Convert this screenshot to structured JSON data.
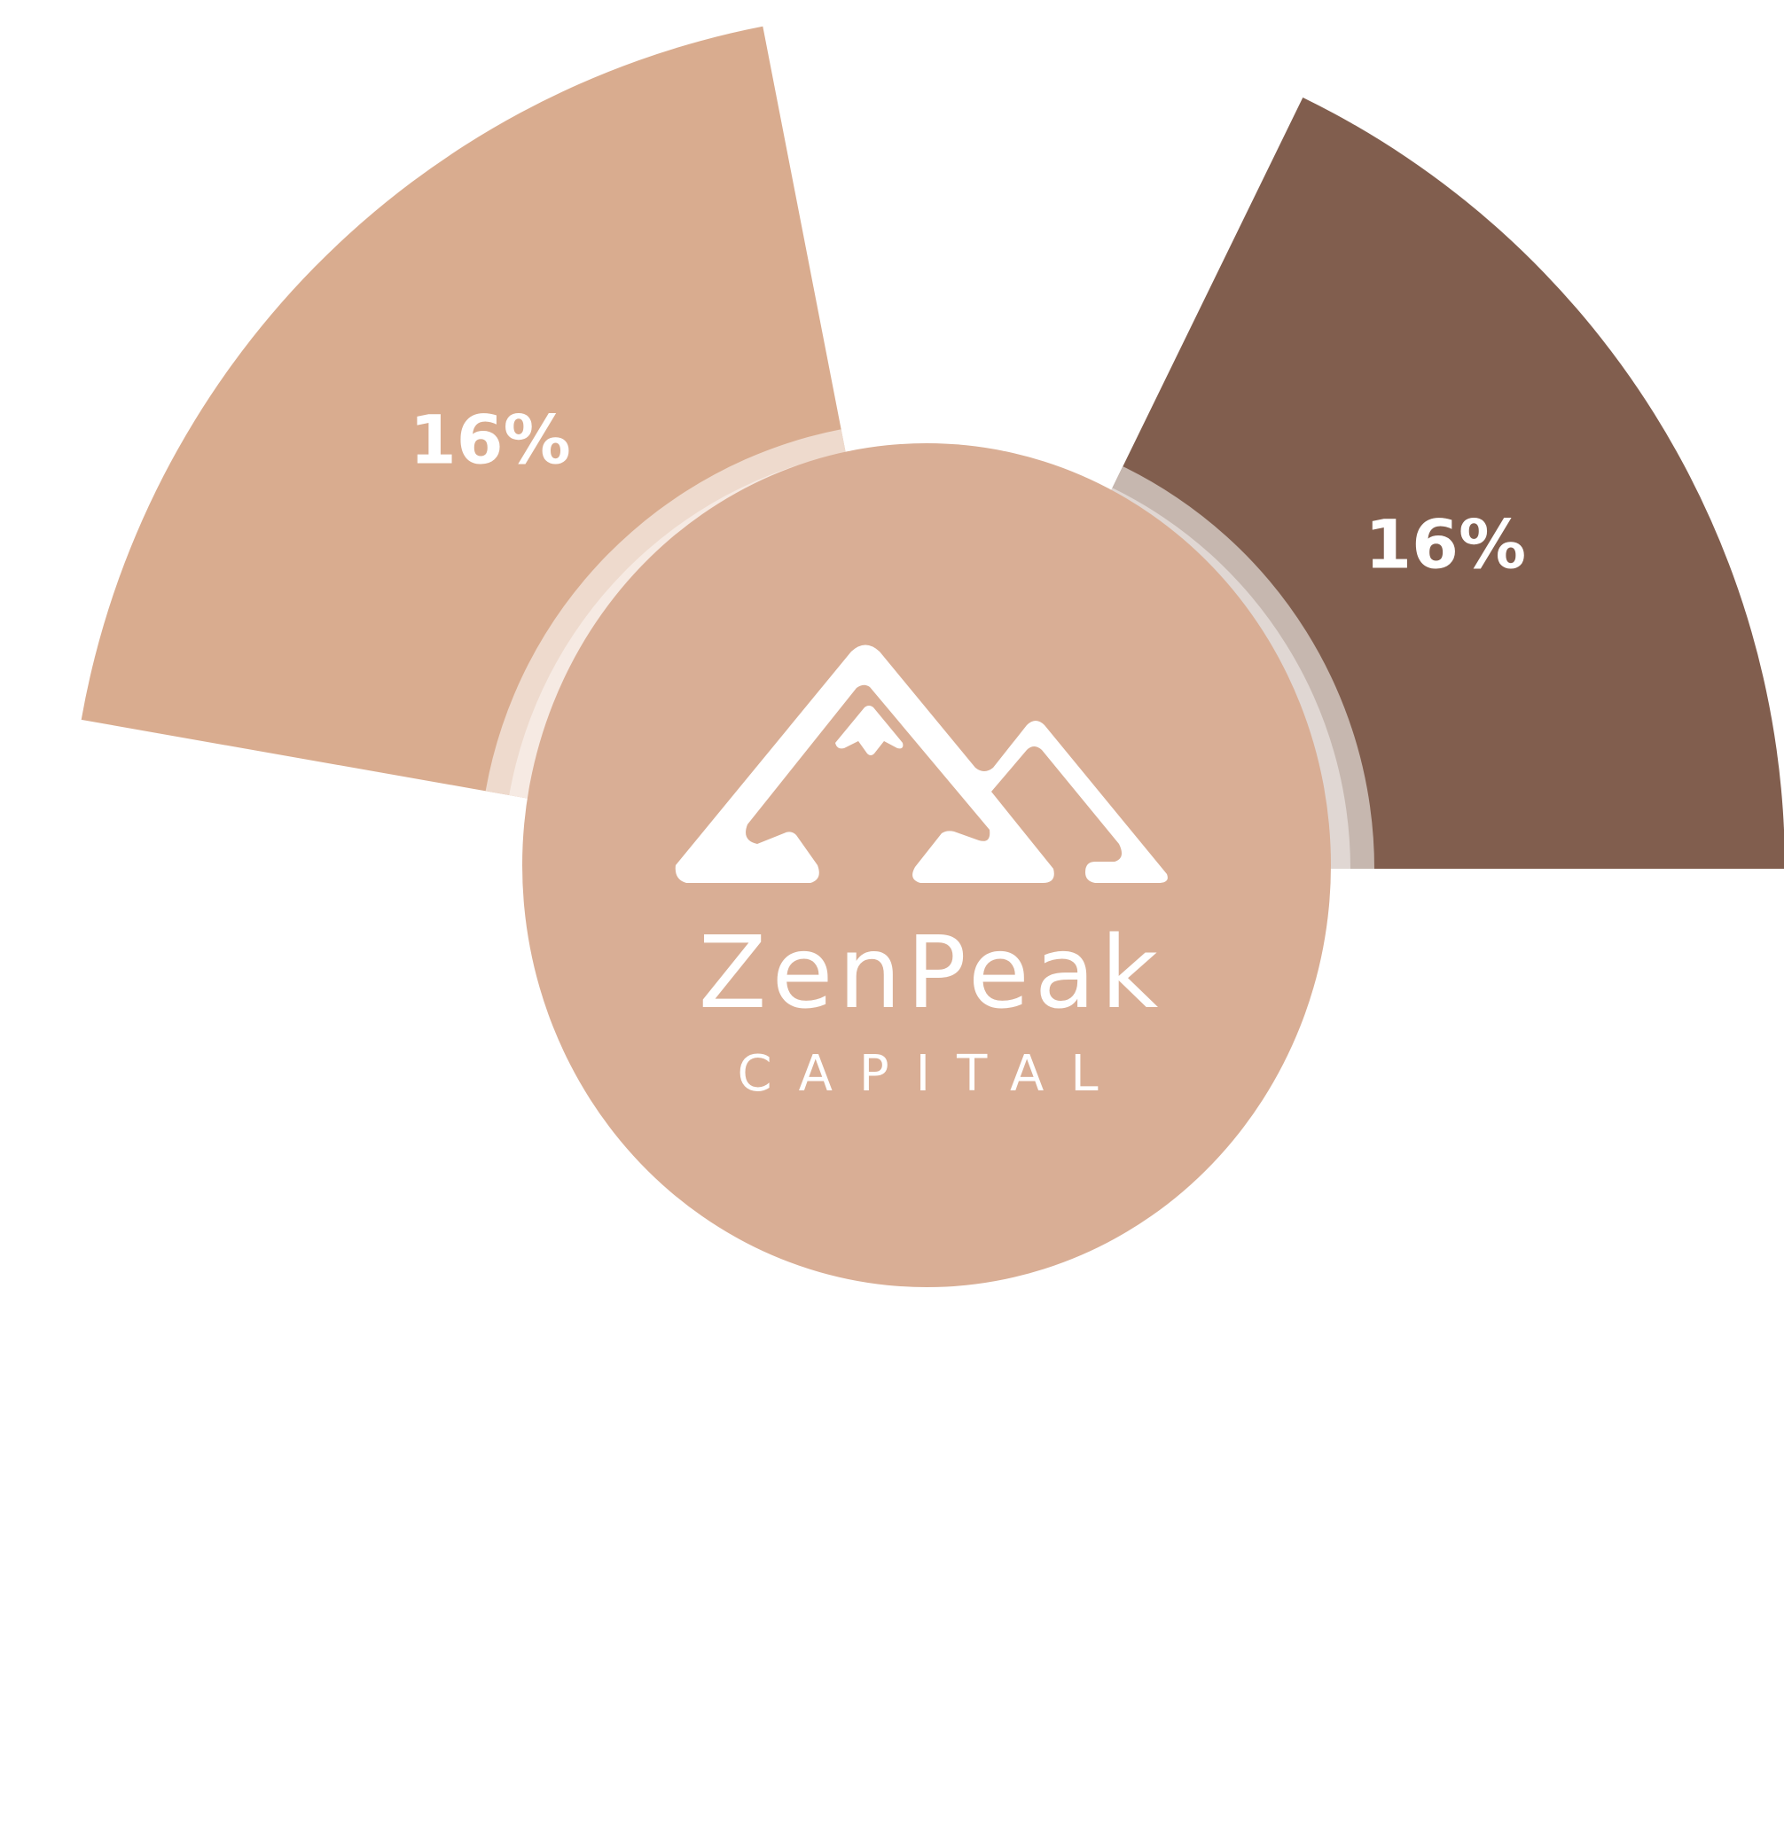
{
  "chart_data": {
    "type": "pie",
    "variant": "exploded-radial-segments",
    "title": "",
    "slices": [
      {
        "label": "16%",
        "value": 16,
        "color": "#D9AC8F",
        "start_deg": 190,
        "end_deg": 259
      },
      {
        "label": "16%",
        "value": 16,
        "color": "#815E4E",
        "start_deg": 296,
        "end_deg": 360
      }
    ]
  },
  "center": {
    "color": "#D9AE95",
    "brand_name": "ZenPeak",
    "brand_sub": "CAPITAL",
    "logo_icon": "mountain-peaks-icon"
  }
}
